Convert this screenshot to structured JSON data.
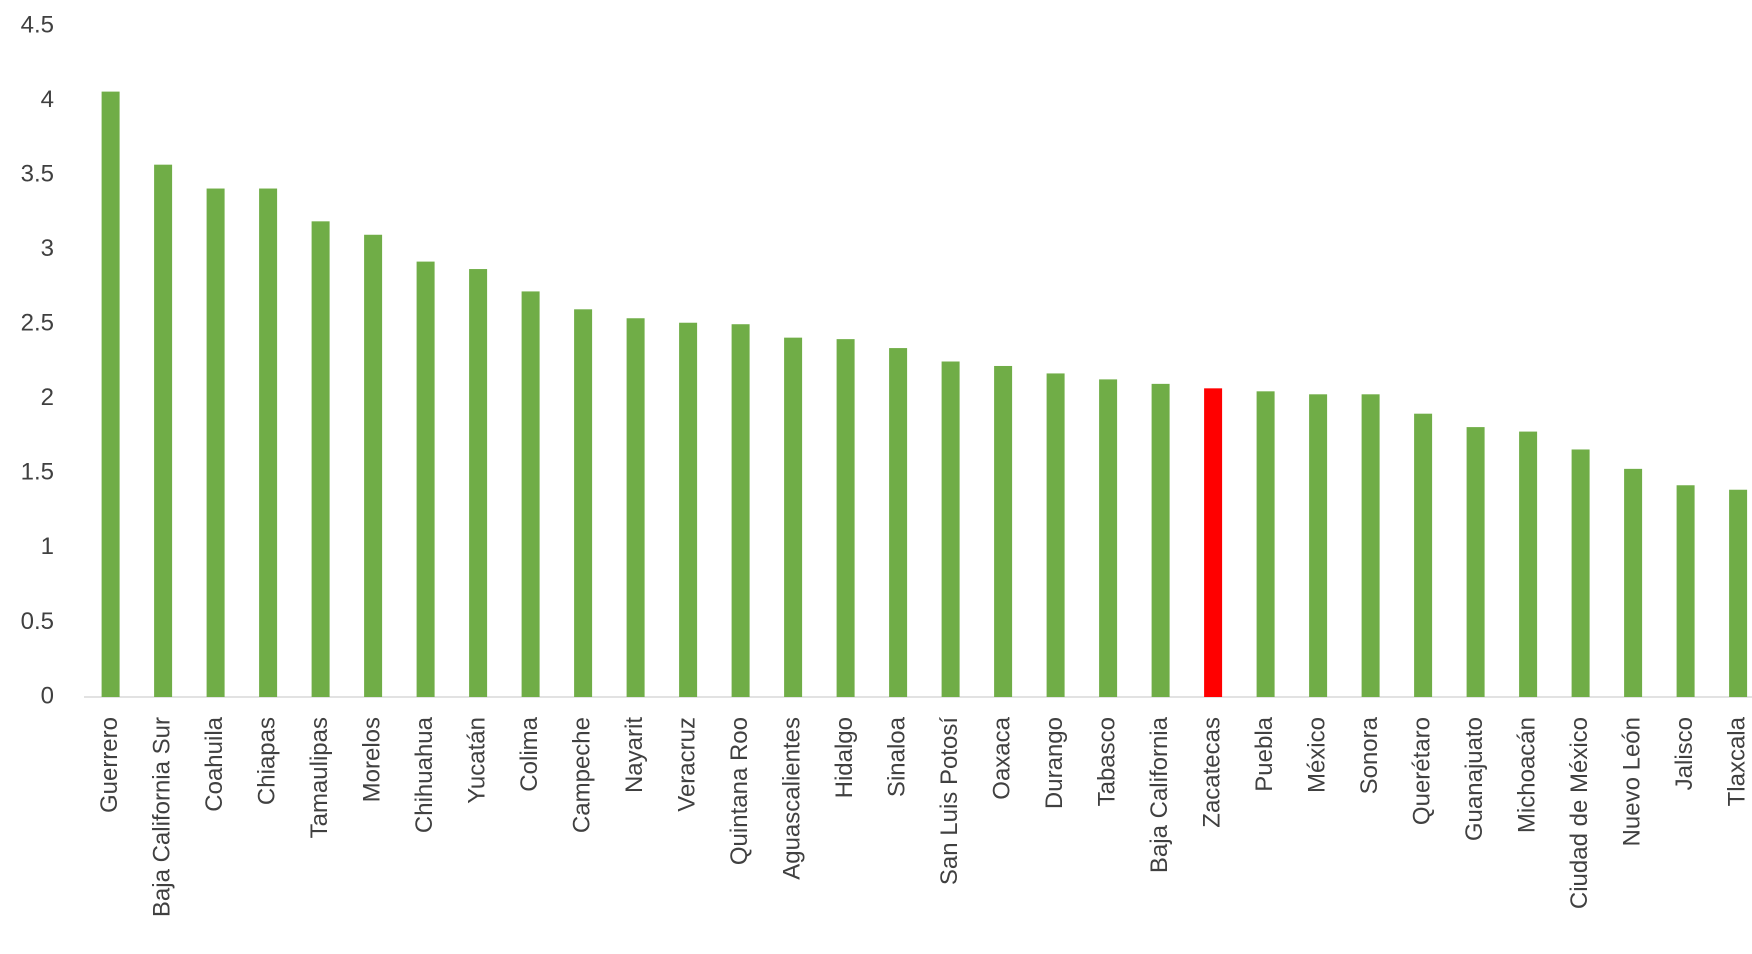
{
  "chart_data": {
    "type": "bar",
    "categories": [
      "Guerrero",
      "Baja California Sur",
      "Coahuila",
      "Chiapas",
      "Tamaulipas",
      "Morelos",
      "Chihuahua",
      "Yucatán",
      "Colima",
      "Campeche",
      "Nayarit",
      "Veracruz",
      "Quintana Roo",
      "Aguascalientes",
      "Hidalgo",
      "Sinaloa",
      "San Luis Potosí",
      "Oaxaca",
      "Durango",
      "Tabasco",
      "Baja California",
      "Zacatecas",
      "Puebla",
      "México",
      "Sonora",
      "Querétaro",
      "Guanajuato",
      "Michoacán",
      "Ciudad de México",
      "Nuevo León",
      "Jalisco",
      "Tlaxcala"
    ],
    "values": [
      4.06,
      3.57,
      3.41,
      3.41,
      3.19,
      3.1,
      2.92,
      2.87,
      2.72,
      2.6,
      2.54,
      2.51,
      2.5,
      2.41,
      2.4,
      2.34,
      2.25,
      2.22,
      2.17,
      2.13,
      2.1,
      2.07,
      2.05,
      2.03,
      2.03,
      1.9,
      1.81,
      1.78,
      1.66,
      1.53,
      1.42,
      1.39
    ],
    "colors": [
      "#70ad47",
      "#70ad47",
      "#70ad47",
      "#70ad47",
      "#70ad47",
      "#70ad47",
      "#70ad47",
      "#70ad47",
      "#70ad47",
      "#70ad47",
      "#70ad47",
      "#70ad47",
      "#70ad47",
      "#70ad47",
      "#70ad47",
      "#70ad47",
      "#70ad47",
      "#70ad47",
      "#70ad47",
      "#70ad47",
      "#70ad47",
      "#ff0000",
      "#70ad47",
      "#70ad47",
      "#70ad47",
      "#70ad47",
      "#70ad47",
      "#70ad47",
      "#70ad47",
      "#70ad47",
      "#70ad47",
      "#70ad47"
    ],
    "ylim": [
      0,
      4.5
    ],
    "yticks": [
      0,
      0.5,
      1,
      1.5,
      2,
      2.5,
      3,
      3.5,
      4,
      4.5
    ],
    "grid": false
  }
}
